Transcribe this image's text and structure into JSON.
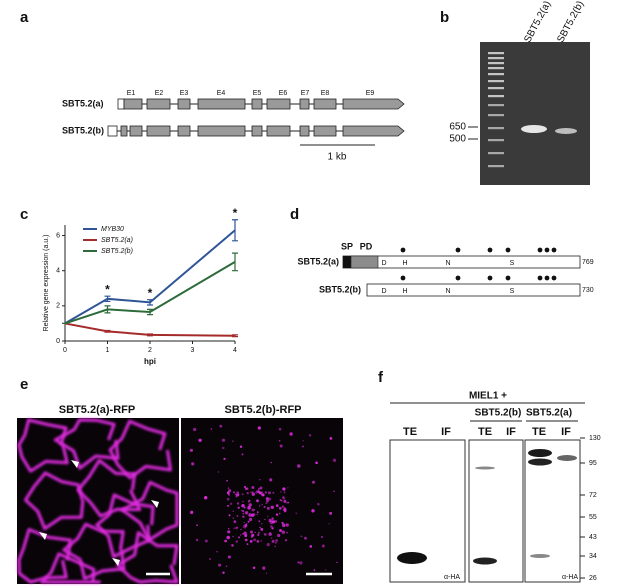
{
  "panels": {
    "a": {
      "label": "a",
      "genes": [
        "SBT5.2(a)",
        "SBT5.2(b)"
      ],
      "exons": [
        "E1",
        "E2",
        "E3",
        "E4",
        "E5",
        "E6",
        "E7",
        "E8",
        "E9"
      ],
      "scale": "1 kb"
    },
    "b": {
      "label": "b",
      "lanes": [
        "SBT5.2(a)",
        "SBT5.2(b)"
      ],
      "sizes": [
        650,
        500
      ]
    },
    "c": {
      "label": "c"
    },
    "d": {
      "label": "d",
      "rows": [
        "SBT5.2(a)",
        "SBT5.2(b)"
      ],
      "domains": [
        "SP",
        "PD"
      ],
      "residues": [
        "D",
        "H",
        "N",
        "S"
      ],
      "lengths": [
        "769",
        "730"
      ]
    },
    "e": {
      "label": "e",
      "titles": [
        "SBT5.2(a)-RFP",
        "SBT5.2(b)-RFP"
      ]
    },
    "f": {
      "label": "f",
      "header": "MIEL1 +",
      "groups": [
        "SBT5.2(b)",
        "SBT5.2(a)"
      ],
      "lanes": [
        "TE",
        "IF",
        "TE",
        "IF",
        "TE",
        "IF"
      ],
      "markers": [
        130,
        95,
        72,
        55,
        43,
        34,
        26
      ],
      "antibody": "α-HA"
    }
  },
  "chart_data": {
    "type": "line",
    "x": [
      0,
      1,
      2,
      4
    ],
    "xlabel": "hpi",
    "ylabel": "Relative gene expression (a.u.)",
    "xlim": [
      0,
      4
    ],
    "xticks": [
      0,
      1,
      2,
      3,
      4
    ],
    "ylim": [
      0,
      6.6
    ],
    "yticks": [
      0,
      2,
      4,
      6
    ],
    "legend": "upper left",
    "series": [
      {
        "name": "MYB30",
        "color": "#2f5597",
        "values": [
          1,
          2.4,
          2.2,
          6.3
        ],
        "errors": [
          0,
          0.15,
          0.15,
          0.6
        ]
      },
      {
        "name": "SBT5.2(a)",
        "color": "#a52a2a",
        "values": [
          1,
          0.55,
          0.35,
          0.3
        ],
        "errors": [
          0,
          0.05,
          0.05,
          0.05
        ]
      },
      {
        "name": "SBT5.2(b)",
        "color": "#2e6b3a",
        "values": [
          1,
          1.8,
          1.65,
          4.5
        ],
        "errors": [
          0,
          0.2,
          0.15,
          0.5
        ]
      }
    ],
    "annotations": [
      {
        "text": "*",
        "x": 1
      },
      {
        "text": "*",
        "x": 2
      },
      {
        "text": "*",
        "x": 4
      }
    ]
  }
}
